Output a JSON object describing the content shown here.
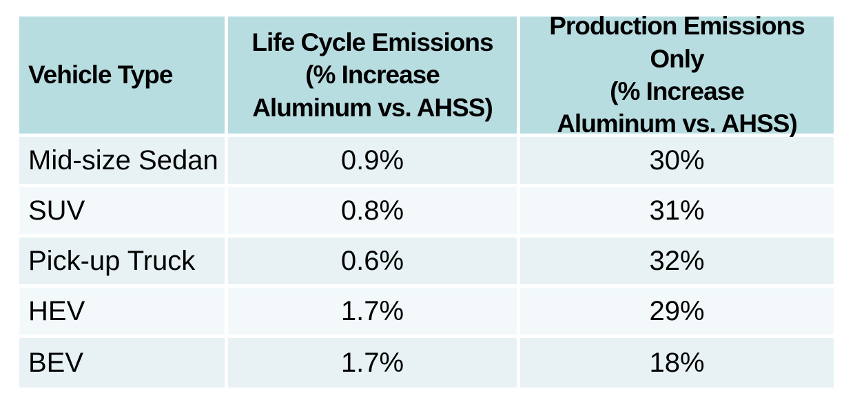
{
  "table": {
    "colors": {
      "header_bg": "#b8dde1",
      "row_odd_bg": "#e8f2f4",
      "row_even_bg": "#f3f9fa",
      "gap": "#ffffff",
      "text": "#000000"
    },
    "columns": [
      {
        "header_lines": [
          "Vehicle Type"
        ]
      },
      {
        "header_lines": [
          "Life Cycle Emissions",
          "(% Increase",
          "Aluminum vs. AHSS)"
        ]
      },
      {
        "header_lines": [
          "Production Emissions Only",
          "(% Increase",
          "Aluminum vs. AHSS)"
        ]
      }
    ],
    "rows": [
      {
        "cells": [
          "Mid-size Sedan",
          "0.9%",
          "30%"
        ]
      },
      {
        "cells": [
          "SUV",
          "0.8%",
          "31%"
        ]
      },
      {
        "cells": [
          "Pick-up Truck",
          "0.6%",
          "32%"
        ]
      },
      {
        "cells": [
          "HEV",
          "1.7%",
          "29%"
        ]
      },
      {
        "cells": [
          "BEV",
          "1.7%",
          "18%"
        ]
      }
    ]
  },
  "chart_data": {
    "type": "table",
    "title": "",
    "columns": [
      "Vehicle Type",
      "Life Cycle Emissions (% Increase Aluminum vs. AHSS)",
      "Production Emissions Only (% Increase Aluminum vs. AHSS)"
    ],
    "rows": [
      [
        "Mid-size Sedan",
        "0.9%",
        "30%"
      ],
      [
        "SUV",
        "0.8%",
        "31%"
      ],
      [
        "Pick-up Truck",
        "0.6%",
        "32%"
      ],
      [
        "HEV",
        "1.7%",
        "29%"
      ],
      [
        "BEV",
        "1.7%",
        "18%"
      ]
    ],
    "values_numeric": {
      "life_cycle_pct_increase": [
        0.9,
        0.8,
        0.6,
        1.7,
        1.7
      ],
      "production_only_pct_increase": [
        30,
        31,
        32,
        29,
        18
      ]
    }
  }
}
